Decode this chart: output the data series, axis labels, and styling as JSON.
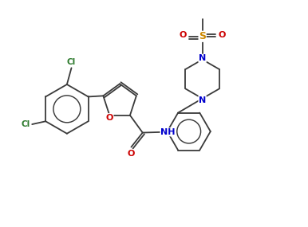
{
  "bg_color": "#ffffff",
  "line_color": "#3a3a3a",
  "atom_colors": {
    "O": "#cc0000",
    "N": "#0000cc",
    "S": "#cc8800",
    "Cl": "#2d7a2d"
  },
  "figsize": [
    3.86,
    2.85
  ],
  "dpi": 100
}
